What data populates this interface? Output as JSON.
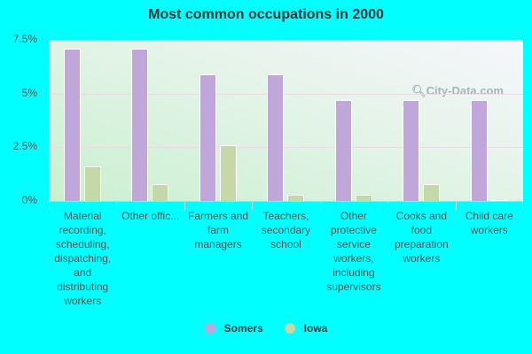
{
  "chart_data": {
    "type": "bar",
    "title": "Most common occupations in 2000",
    "xlabel": "",
    "ylabel": "",
    "ylim": [
      0,
      7.5
    ],
    "yticks": [
      "0%",
      "2.5%",
      "5%",
      "7.5%"
    ],
    "grid": true,
    "legend_position": "bottom",
    "categories": [
      "Material recording, scheduling, dispatching, and distributing workers",
      "Other offic...",
      "Farmers and farm managers",
      "Teachers, secondary school",
      "Other protective service workers, including supervisors",
      "Cooks and food preparation workers",
      "Child care workers"
    ],
    "series": [
      {
        "name": "Somers",
        "color": "#bfa8d9",
        "values": [
          7.1,
          7.1,
          5.9,
          5.9,
          4.7,
          4.7,
          4.7
        ]
      },
      {
        "name": "Iowa",
        "color": "#c4d8a8",
        "values": [
          1.6,
          0.8,
          2.6,
          0.3,
          0.3,
          0.8,
          0.02
        ]
      }
    ]
  },
  "watermark": "City-Data.com",
  "legend": [
    "Somers",
    "Iowa"
  ]
}
